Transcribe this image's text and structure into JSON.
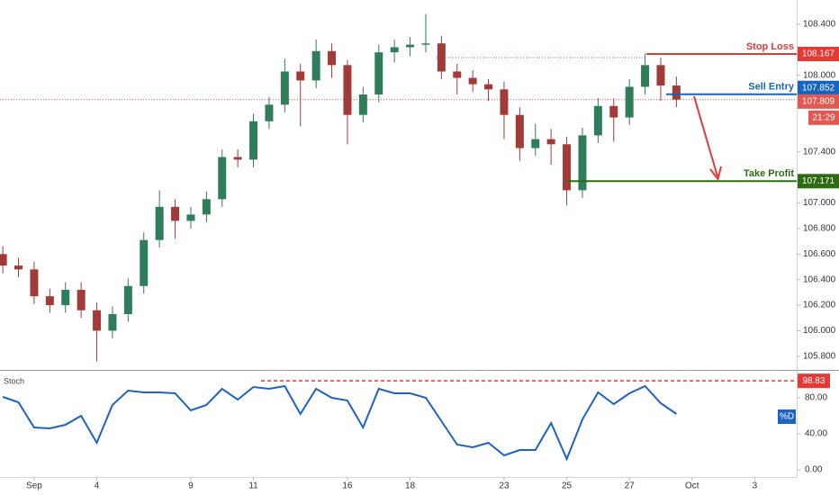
{
  "chart_data": [
    {
      "type": "candlestick",
      "x": [
        -1.0,
        -0.5,
        0,
        0.5,
        1.0,
        1.5,
        2.0,
        2.5,
        3.0,
        3.5,
        4.0,
        4.5,
        5.0,
        5.5,
        6.0,
        6.5,
        7.0,
        7.5,
        8.0,
        8.5,
        9.0,
        9.5,
        10.0,
        10.5,
        11.0,
        11.5,
        12.0,
        12.5,
        13.0,
        13.5,
        14.0,
        14.5,
        15.0,
        15.5,
        16.0,
        16.5,
        17.0,
        17.5,
        18.0,
        18.5,
        19.0,
        19.5,
        20.0,
        20.5
      ],
      "open": [
        106.6,
        106.51,
        106.48,
        106.27,
        106.2,
        106.32,
        106.16,
        106.0,
        106.13,
        106.35,
        106.71,
        106.97,
        106.86,
        106.91,
        107.03,
        107.36,
        107.34,
        107.64,
        107.77,
        108.03,
        107.96,
        108.19,
        108.08,
        107.69,
        107.85,
        108.18,
        108.22,
        108.24,
        108.25,
        108.03,
        107.98,
        107.93,
        107.89,
        107.69,
        107.43,
        107.5,
        107.46,
        107.1,
        107.53,
        107.76,
        107.67,
        107.91,
        108.08,
        107.92
      ],
      "high": [
        106.66,
        106.57,
        106.54,
        106.33,
        106.38,
        106.38,
        106.22,
        106.19,
        106.41,
        106.77,
        107.1,
        107.03,
        106.97,
        107.09,
        107.42,
        107.42,
        107.7,
        107.83,
        108.13,
        108.09,
        108.28,
        108.25,
        108.12,
        107.91,
        108.24,
        108.28,
        108.3,
        108.48,
        108.31,
        108.09,
        108.04,
        107.97,
        107.95,
        107.75,
        107.62,
        107.58,
        107.52,
        107.59,
        107.82,
        107.82,
        107.97,
        108.17,
        108.14,
        107.99
      ],
      "low": [
        106.45,
        106.42,
        106.21,
        106.14,
        106.14,
        106.1,
        105.76,
        105.94,
        106.07,
        106.29,
        106.65,
        106.72,
        106.8,
        106.85,
        106.97,
        107.28,
        107.28,
        107.58,
        107.71,
        107.6,
        107.9,
        107.98,
        107.46,
        107.63,
        107.79,
        108.1,
        108.15,
        108.18,
        107.97,
        107.85,
        107.87,
        107.8,
        107.5,
        107.33,
        107.37,
        107.3,
        106.98,
        107.04,
        107.47,
        107.48,
        107.61,
        107.85,
        107.8,
        107.75
      ],
      "close": [
        106.51,
        106.48,
        106.27,
        106.2,
        106.32,
        106.16,
        106.0,
        106.13,
        106.35,
        106.71,
        106.97,
        106.86,
        106.91,
        107.03,
        107.36,
        107.34,
        107.64,
        107.77,
        108.03,
        107.96,
        108.19,
        108.08,
        107.69,
        107.85,
        108.18,
        108.22,
        108.24,
        108.25,
        108.03,
        107.98,
        107.93,
        107.89,
        107.69,
        107.43,
        107.5,
        107.46,
        107.1,
        107.53,
        107.76,
        107.67,
        107.91,
        108.08,
        107.92,
        107.81
      ],
      "up_color": "#2f7d5b",
      "down_color": "#a23b37",
      "xlim": [
        -1.09,
        24.34
      ],
      "ylim": [
        105.7,
        108.59
      ],
      "yticks": [
        {
          "value": 108.4,
          "label": "108.400"
        },
        {
          "value": 108.0,
          "label": "108.000"
        },
        {
          "value": 107.4,
          "label": "107.400"
        },
        {
          "value": 107.0,
          "label": "107.000"
        },
        {
          "value": 106.8,
          "label": "106.800"
        },
        {
          "value": 106.6,
          "label": "106.600"
        },
        {
          "value": 106.4,
          "label": "106.400"
        },
        {
          "value": 106.2,
          "label": "106.200"
        },
        {
          "value": 106.0,
          "label": "106.000"
        },
        {
          "value": 105.8,
          "label": "105.800"
        }
      ],
      "levels": [
        {
          "label": "Stop Loss",
          "value": 108.167,
          "color": "#e53935"
        },
        {
          "label": "Sell Entry",
          "value": 107.852,
          "color": "#1565c0"
        },
        {
          "label": "Take Profit",
          "value": 107.171,
          "color": "#2e6b12"
        }
      ],
      "last_price": 107.809,
      "last_color": "#e0584f",
      "countdown": "21:29"
    },
    {
      "type": "line",
      "title": "Stoch",
      "x": [
        -1.0,
        -0.5,
        0,
        0.5,
        1.0,
        1.5,
        2.0,
        2.5,
        3.0,
        3.5,
        4.0,
        4.5,
        5.0,
        5.5,
        6.0,
        6.5,
        7.0,
        7.5,
        8.0,
        8.5,
        9.0,
        9.5,
        10.0,
        10.5,
        11.0,
        11.5,
        12.0,
        12.5,
        13.0,
        13.5,
        14.0,
        14.5,
        15.0,
        15.5,
        16.0,
        16.5,
        17.0,
        17.5,
        18.0,
        18.5,
        19.0,
        19.5,
        20.0,
        20.5
      ],
      "series": [
        {
          "name": "%D",
          "color": "#1e63c4",
          "values": [
            81,
            75,
            47,
            46,
            50,
            60,
            30,
            72,
            88,
            86,
            86,
            85,
            66,
            72,
            90,
            78,
            92,
            90,
            93,
            62,
            90,
            80,
            77,
            47,
            90,
            85,
            85,
            80,
            54,
            28,
            25,
            30,
            16,
            22,
            22,
            52,
            12,
            56,
            86,
            73,
            85,
            93,
            74,
            62
          ]
        }
      ],
      "xlim": [
        -1.09,
        24.34
      ],
      "ylim": [
        -8,
        109
      ],
      "yticks": [
        {
          "value": 80,
          "label": "80.00"
        },
        {
          "value": 40,
          "label": "40.00"
        },
        {
          "value": 0,
          "label": "0.00"
        }
      ],
      "xticks": [
        {
          "value": 0,
          "label": "Sep"
        },
        {
          "value": 2,
          "label": "4"
        },
        {
          "value": 5,
          "label": "9"
        },
        {
          "value": 7,
          "label": "11"
        },
        {
          "value": 10,
          "label": "16"
        },
        {
          "value": 12,
          "label": "18"
        },
        {
          "value": 15,
          "label": "23"
        },
        {
          "value": 17,
          "label": "25"
        },
        {
          "value": 19,
          "label": "27"
        },
        {
          "value": 21,
          "label": "Oct"
        },
        {
          "value": 23,
          "label": "3"
        }
      ],
      "reference": {
        "value": 98.83,
        "color": "#e53935"
      }
    }
  ]
}
